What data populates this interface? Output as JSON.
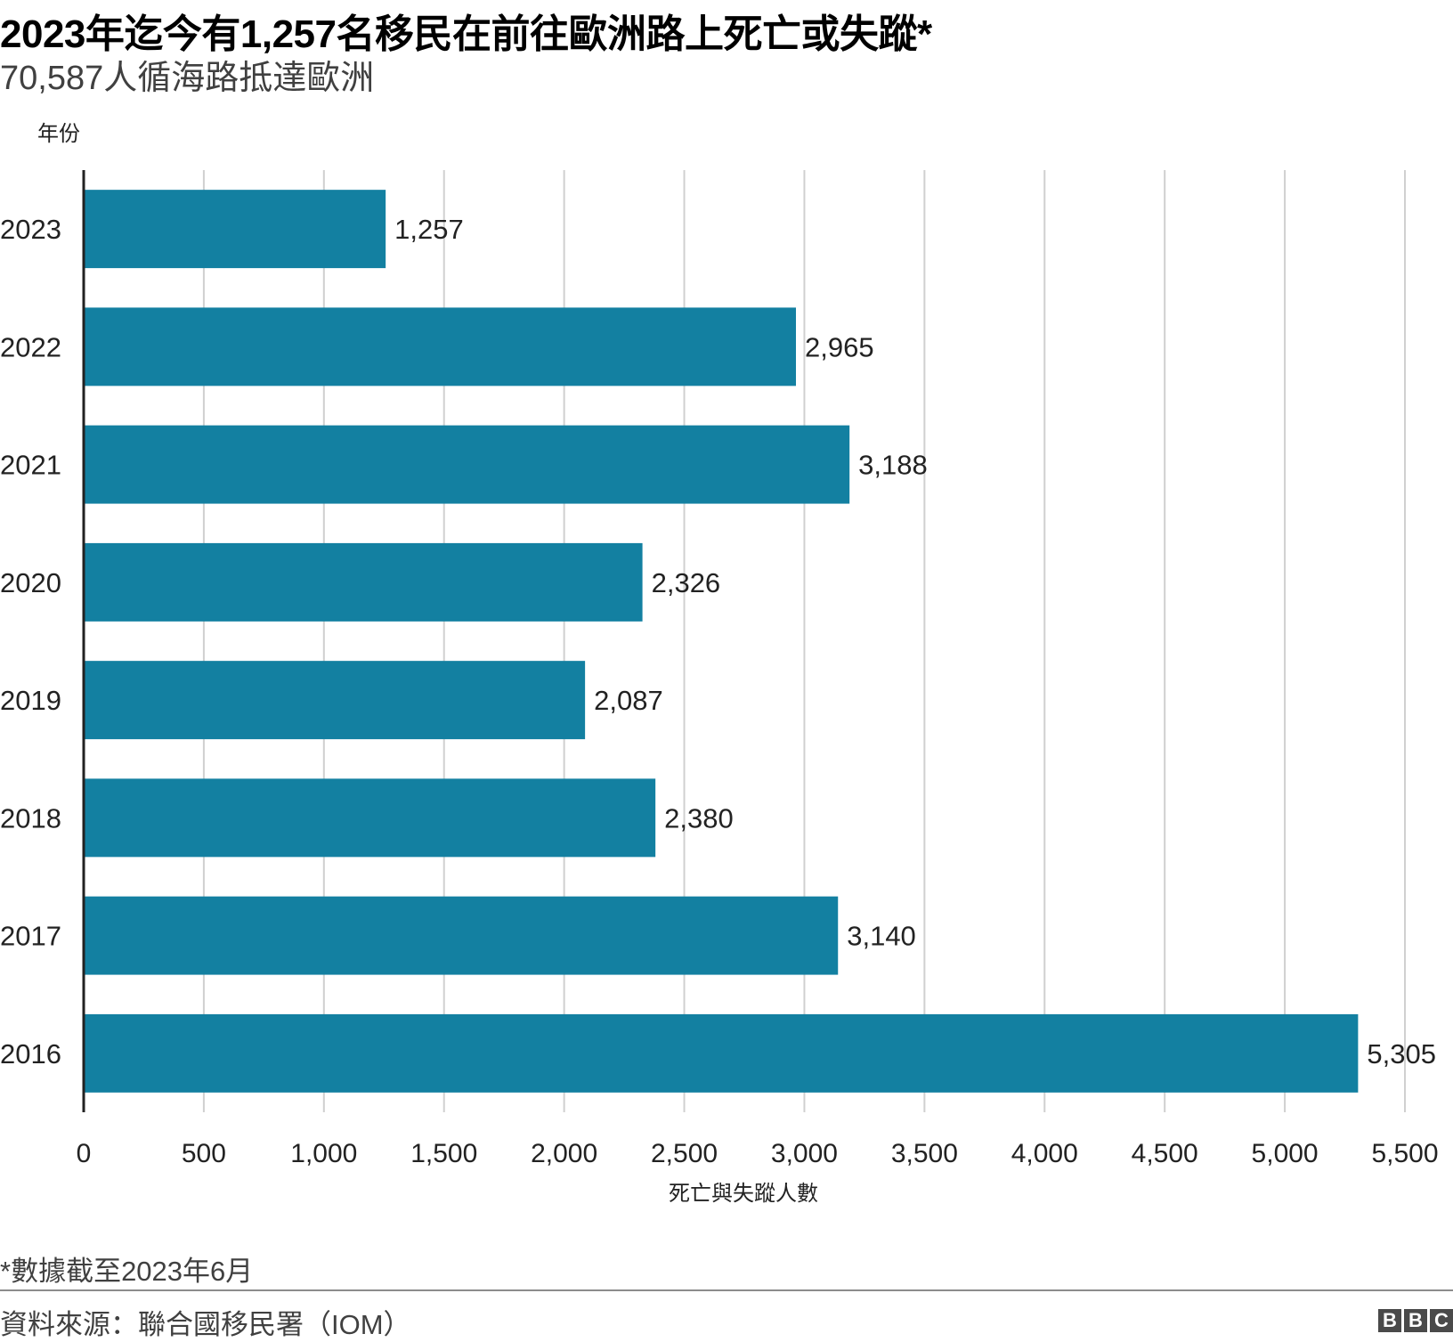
{
  "header": {
    "title": "2023年迄今有1,257名移民在前往歐洲路上死亡或失蹤*",
    "subtitle": "70,587人循海路抵達歐洲"
  },
  "footer": {
    "note": "*數據截至2023年6月",
    "source": "資料來源：聯合國移民署（IOM）",
    "logo_letters": [
      "B",
      "B",
      "C"
    ]
  },
  "chart_data": {
    "type": "bar",
    "orientation": "horizontal",
    "y_axis_label": "年份",
    "x_axis_label": "死亡與失蹤人數",
    "categories": [
      "2023",
      "2022",
      "2021",
      "2020",
      "2019",
      "2018",
      "2017",
      "2016"
    ],
    "values": [
      1257,
      2965,
      3188,
      2326,
      2087,
      2380,
      3140,
      5305
    ],
    "value_labels": [
      "1,257",
      "2,965",
      "3,188",
      "2,326",
      "2,087",
      "2,380",
      "3,140",
      "5,305"
    ],
    "xlim": [
      0,
      5500
    ],
    "x_ticks": [
      0,
      500,
      1000,
      1500,
      2000,
      2500,
      3000,
      3500,
      4000,
      4500,
      5000,
      5500
    ],
    "x_tick_labels": [
      "0",
      "500",
      "1,000",
      "1,500",
      "2,000",
      "2,500",
      "3,000",
      "3,500",
      "4,000",
      "4,500",
      "5,000",
      "5,500"
    ],
    "grid": "vertical",
    "bar_color": "#1380A1"
  }
}
